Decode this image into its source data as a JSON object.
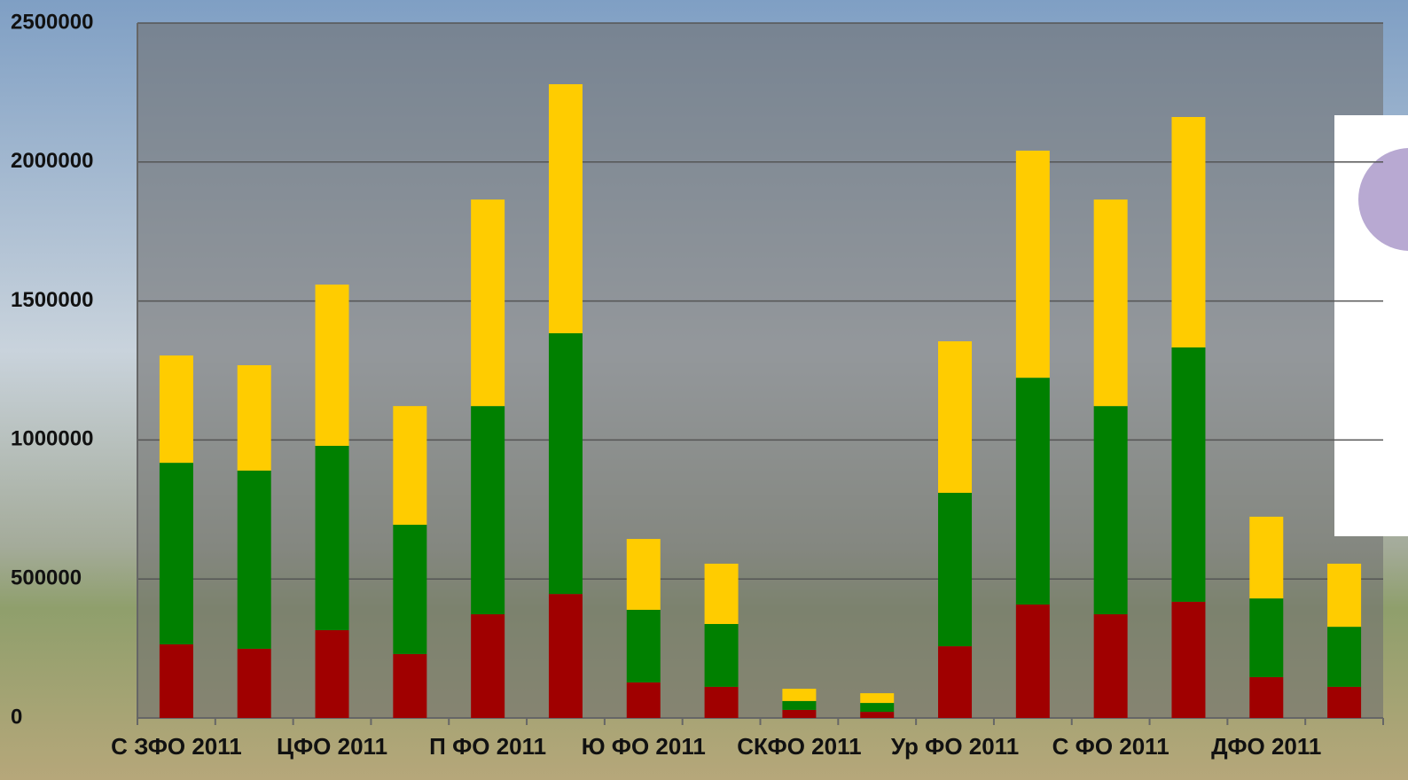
{
  "chart_data": {
    "type": "stacked-bar",
    "categories": [
      "С ЗФО 2011",
      null,
      "ЦФО 2011",
      null,
      "П ФО 2011",
      null,
      "Ю ФО 2011",
      null,
      "СКФО 2011",
      null,
      "Ур ФО 2011",
      null,
      "С ФО 2011",
      null,
      "ДФО 2011",
      null
    ],
    "series": [
      {
        "color": "#a00000",
        "values": [
          265000,
          249000,
          316000,
          230000,
          373000,
          446000,
          128000,
          112000,
          29000,
          22000,
          258000,
          408000,
          373000,
          418000,
          147000,
          112000
        ]
      },
      {
        "color": "#008000",
        "values": [
          653000,
          641000,
          663000,
          465000,
          749000,
          938000,
          261000,
          226000,
          32000,
          32000,
          552000,
          816000,
          749000,
          915000,
          283000,
          216000
        ]
      },
      {
        "color": "#ffcc00",
        "values": [
          386000,
          379000,
          580000,
          427000,
          743000,
          896000,
          255000,
          217000,
          44000,
          35000,
          545000,
          817000,
          743000,
          829000,
          294000,
          227000
        ]
      }
    ],
    "ylim": [
      0,
      2500000
    ],
    "yticks": [
      0,
      500000,
      1000000,
      1500000,
      2000000,
      2500000
    ],
    "grid": true
  }
}
